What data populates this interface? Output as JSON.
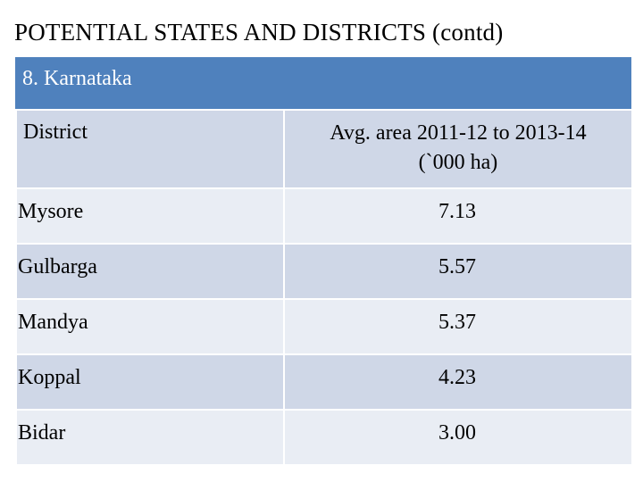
{
  "page": {
    "title": "POTENTIAL STATES AND DISTRICTS (contd)"
  },
  "table": {
    "caption": "8. Karnataka",
    "headers": {
      "district": "District",
      "area_line1": "Avg. area  2011-12 to 2013-14",
      "area_line2": "(`000 ha)"
    },
    "rows": [
      {
        "district": "Mysore",
        "area": "7.13"
      },
      {
        "district": "Gulbarga",
        "area": "5.57"
      },
      {
        "district": "Mandya",
        "area": "5.37"
      },
      {
        "district": "Koppal",
        "area": "4.23"
      },
      {
        "district": "Bidar",
        "area": "3.00"
      }
    ]
  },
  "colors": {
    "caption_band": "#4f81bd",
    "header_fill": "#cfd7e7",
    "row_light": "#e9edf4",
    "row_dark": "#cfd7e7"
  }
}
